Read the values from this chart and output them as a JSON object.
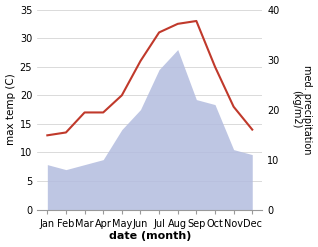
{
  "months": [
    "Jan",
    "Feb",
    "Mar",
    "Apr",
    "May",
    "Jun",
    "Jul",
    "Aug",
    "Sep",
    "Oct",
    "Nov",
    "Dec"
  ],
  "temperature": [
    13,
    13.5,
    17,
    17,
    20,
    26,
    31,
    32.5,
    33,
    25,
    18,
    14
  ],
  "precipitation": [
    9,
    8,
    9,
    10,
    16,
    20,
    28,
    32,
    22,
    21,
    12,
    11
  ],
  "temp_color": "#c0392b",
  "precip_color_fill": "#b3bcdf",
  "xlabel": "date (month)",
  "ylabel_left": "max temp (C)",
  "ylabel_right": "med. precipitation\n(kg/m2)",
  "ylim_left": [
    0,
    35
  ],
  "ylim_right": [
    0,
    40
  ],
  "yticks_left": [
    0,
    5,
    10,
    15,
    20,
    25,
    30,
    35
  ],
  "yticks_right": [
    0,
    10,
    20,
    30,
    40
  ],
  "grid_color": "#cccccc"
}
